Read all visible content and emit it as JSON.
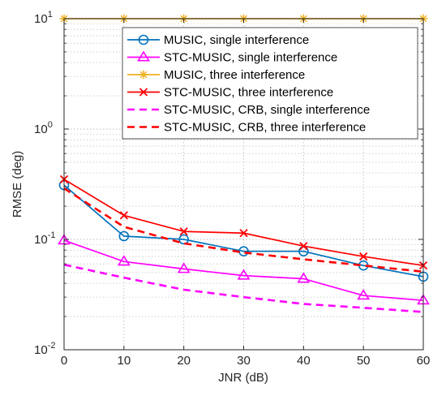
{
  "chart_data": {
    "type": "line",
    "title": "",
    "xlabel": "JNR (dB)",
    "ylabel": "RMSE (deg)",
    "x": [
      0,
      10,
      20,
      30,
      40,
      50,
      60
    ],
    "xlim": [
      0,
      60
    ],
    "ylim": [
      0.01,
      10
    ],
    "yscale": "log",
    "grid": true,
    "legend_position": "top-right",
    "x_ticks": [
      "0",
      "10",
      "20",
      "30",
      "40",
      "50",
      "60"
    ],
    "y_ticks": [
      {
        "base": "10",
        "exp": "-2",
        "value": 0.01
      },
      {
        "base": "10",
        "exp": "-1",
        "value": 0.1
      },
      {
        "base": "10",
        "exp": "0",
        "value": 1
      },
      {
        "base": "10",
        "exp": "1",
        "value": 10
      }
    ],
    "series": [
      {
        "name": "MUSIC, single interference",
        "values": [
          0.31,
          0.107,
          0.1,
          0.078,
          0.078,
          0.058,
          0.046
        ],
        "color": "#0072BD",
        "marker": "circle",
        "dash": "solid"
      },
      {
        "name": "STC-MUSIC, single interference",
        "values": [
          0.098,
          0.063,
          0.054,
          0.047,
          0.044,
          0.031,
          0.028
        ],
        "color": "#FF00FF",
        "marker": "triangle",
        "dash": "solid"
      },
      {
        "name": "MUSIC, three interference",
        "values": [
          10,
          10,
          10,
          10,
          10,
          10,
          10
        ],
        "color": "#EDB120",
        "marker": "asterisk",
        "dash": "solid"
      },
      {
        "name": "STC-MUSIC, three interference",
        "values": [
          0.35,
          0.165,
          0.118,
          0.114,
          0.087,
          0.07,
          0.058
        ],
        "color": "#FF0000",
        "marker": "x",
        "dash": "solid"
      },
      {
        "name": "STC-MUSIC, CRB, single interference",
        "values": [
          0.059,
          0.045,
          0.035,
          0.03,
          0.026,
          0.024,
          0.022
        ],
        "color": "#FF00FF",
        "marker": "none",
        "dash": "dashed"
      },
      {
        "name": "STC-MUSIC, CRB, three interference",
        "values": [
          0.29,
          0.13,
          0.092,
          0.076,
          0.066,
          0.058,
          0.051
        ],
        "color": "#FF0000",
        "marker": "none",
        "dash": "dashed"
      }
    ]
  }
}
